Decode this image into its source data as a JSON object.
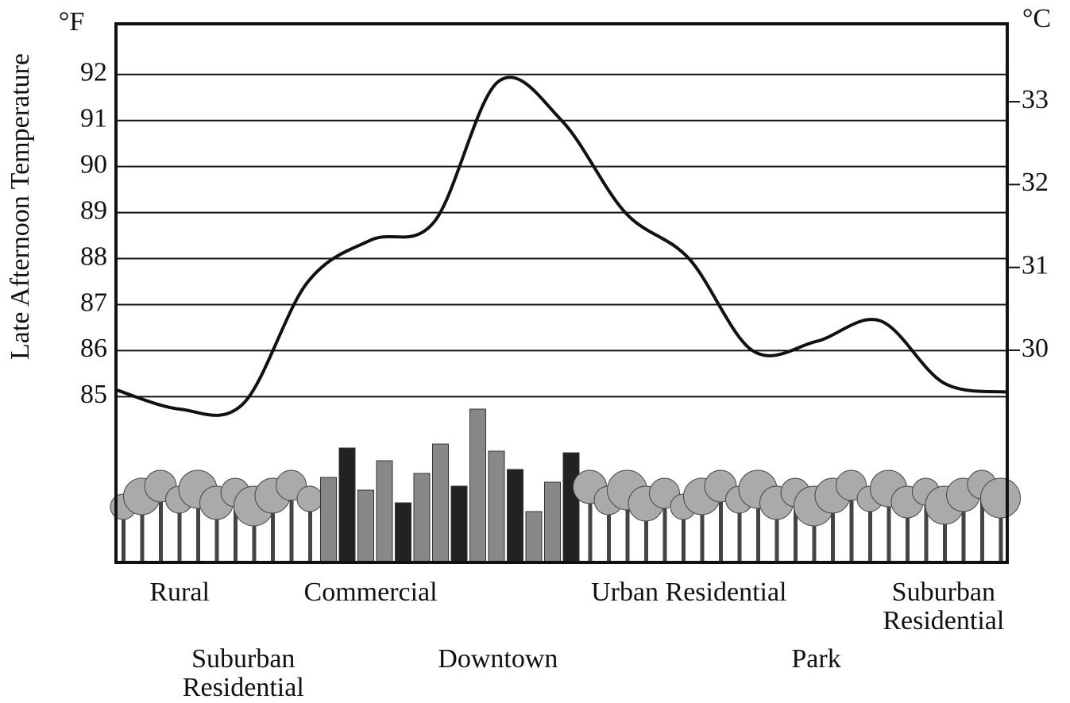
{
  "chart_data": {
    "type": "line",
    "y_label": "Late Afternoon Temperature",
    "y_unit": "°F",
    "y2_unit": "°C",
    "categories": [
      null,
      "Rural",
      "Suburban Residential",
      null,
      "Commercial",
      null,
      "Downtown",
      null,
      null,
      "Urban Residential",
      null,
      "Park",
      null,
      "Suburban Residential",
      null
    ],
    "series": [
      {
        "color": "#111111",
        "values": [
          85.15,
          84.73,
          84.85,
          87.47,
          88.4,
          88.8,
          91.84,
          91.0,
          89.0,
          88.0,
          86.0,
          86.2,
          86.65,
          85.3,
          85.1
        ]
      }
    ],
    "ylim": [
      81.4,
      93.1
    ],
    "yticks": [
      85,
      86,
      87,
      88,
      89,
      90,
      91,
      92
    ],
    "y2lim": [
      27.44,
      33.94
    ],
    "y2ticks": [
      30,
      31,
      32,
      33
    ],
    "grid": true
  }
}
